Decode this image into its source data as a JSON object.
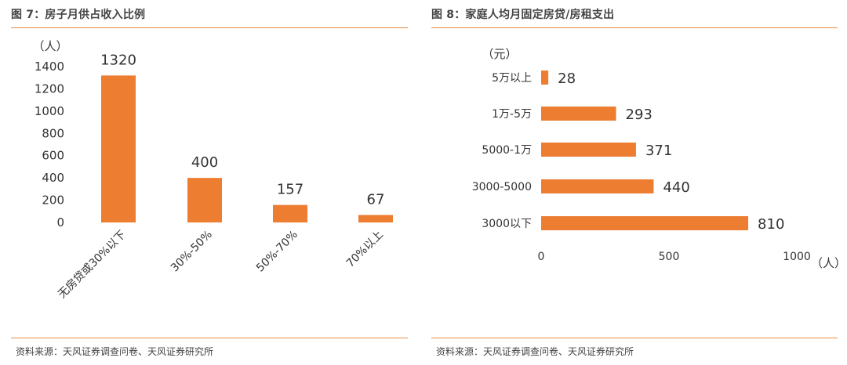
{
  "left_panel": {
    "title": "图 7：房子月供占收入比例",
    "source": "资料来源：天风证券调查问卷、天风证券研究所"
  },
  "right_panel": {
    "title": "图 8：家庭人均月固定房贷/房租支出",
    "source": "资料来源：天风证券调查问卷、天风证券研究所"
  },
  "colors": {
    "bar": "#ED7D31",
    "rule": "#EE8C3E",
    "text": "#333333"
  },
  "chart_data": [
    {
      "type": "bar",
      "orientation": "vertical",
      "title": "",
      "ylabel": "（人）",
      "categories": [
        "无房贷或30%以下",
        "30%-50%",
        "50%-70%",
        "70%以上"
      ],
      "values": [
        1320,
        400,
        157,
        67
      ],
      "ylim": [
        0,
        1400
      ],
      "yticks": [
        0,
        200,
        400,
        600,
        800,
        1000,
        1200,
        1400
      ],
      "grid": false,
      "data_labels": true
    },
    {
      "type": "bar",
      "orientation": "horizontal",
      "title": "",
      "ylabel": "（元）",
      "xlabel": "（人）",
      "categories": [
        "5万以上",
        "1万-5万",
        "5000-1万",
        "3000-5000",
        "3000以下"
      ],
      "values": [
        28,
        293,
        371,
        440,
        810
      ],
      "xlim": [
        0,
        1000
      ],
      "xticks": [
        0,
        500,
        1000
      ],
      "grid": false,
      "data_labels": true
    }
  ]
}
